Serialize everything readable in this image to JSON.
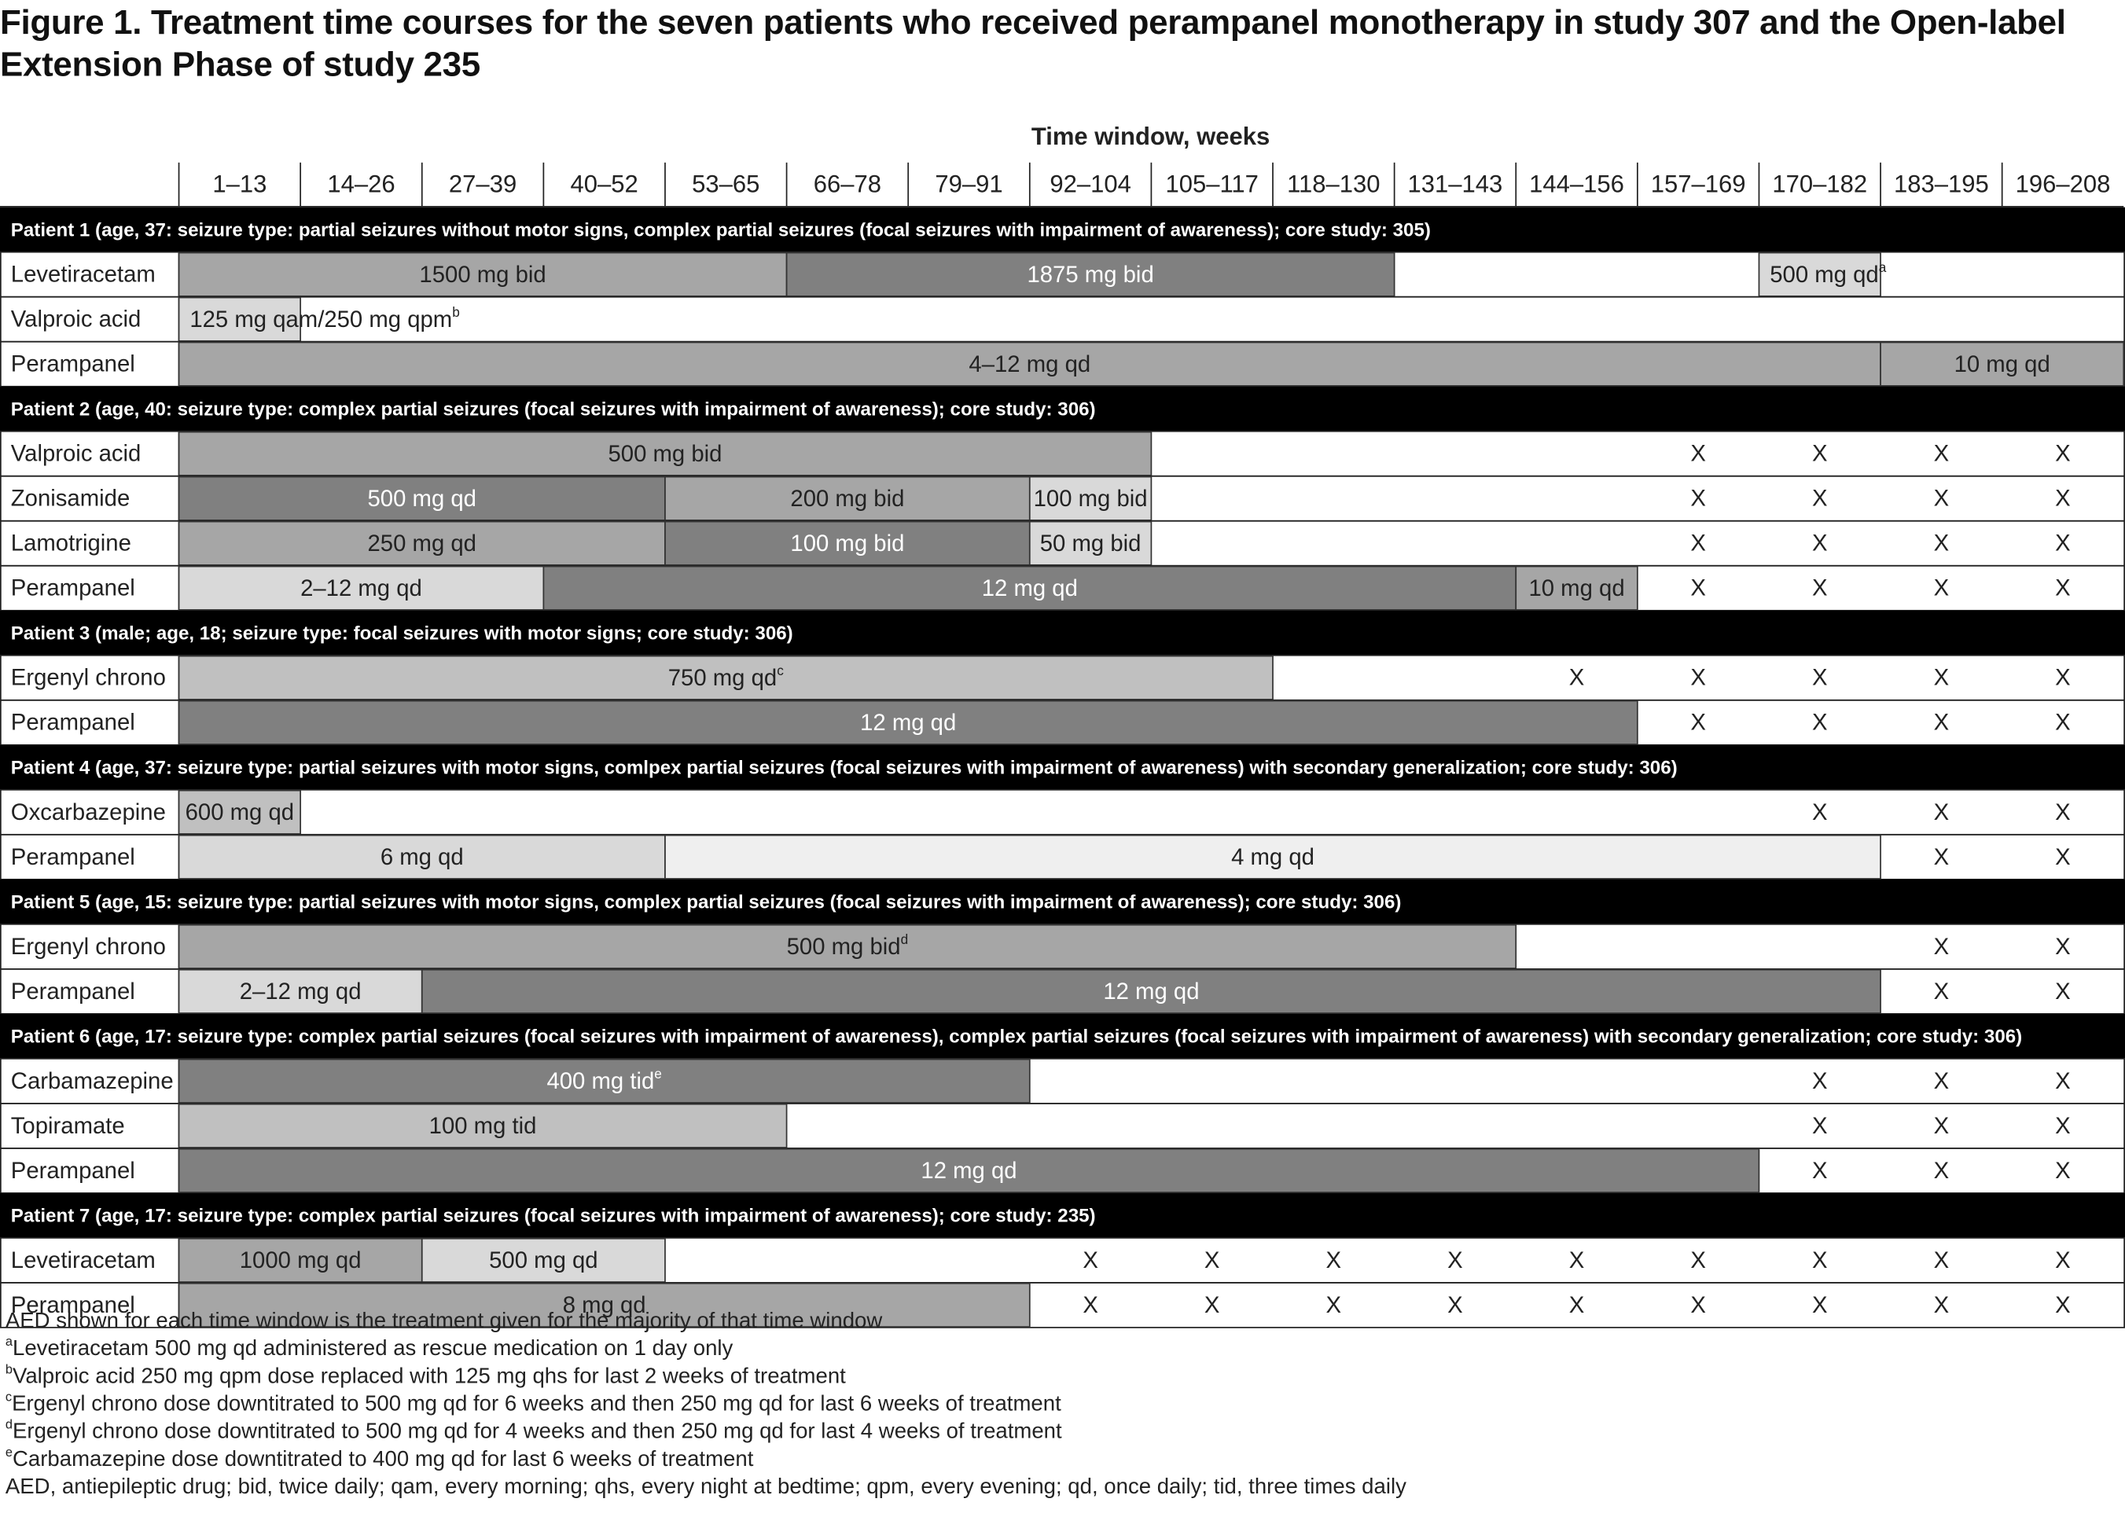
{
  "title": "Figure 1. Treatment time courses for the seven patients who received perampanel monotherapy in study 307 and the Open-label Extension Phase of study 235",
  "axis_title": "Time window, weeks",
  "columns": [
    "1–13",
    "14–26",
    "27–39",
    "40–52",
    "53–65",
    "66–78",
    "79–91",
    "92–104",
    "105–117",
    "118–130",
    "131–143",
    "144–156",
    "157–169",
    "170–182",
    "183–195",
    "196–208"
  ],
  "absent_mark": "X",
  "patients": [
    {
      "header": "Patient 1 (age, 37: seizure type: partial seizures without motor signs, complex partial seizures (focal seizures with impairment of awareness); core study: 305)",
      "rows": [
        {
          "drug": "Levetiracetam",
          "segments": [
            {
              "label": "1500 mg bid",
              "start": 0,
              "end": 5,
              "color": "#a6a6a6"
            },
            {
              "label": "1875 mg bid",
              "start": 5,
              "end": 10,
              "color": "#808080"
            },
            {
              "label": "500 mg qd",
              "note": "a",
              "start": 13,
              "end": 14,
              "color": "#d9d9d9"
            }
          ],
          "absent": []
        },
        {
          "drug": "Valproic acid",
          "segments": [
            {
              "label": "125 mg qam/250 mg qpm",
              "note": "b",
              "start": 0,
              "end": 1,
              "color": "#d9d9d9"
            }
          ],
          "absent": []
        },
        {
          "drug": "Perampanel",
          "segments": [
            {
              "label": "4–12 mg qd",
              "start": 0,
              "end": 14,
              "color": "#a6a6a6"
            },
            {
              "label": "10 mg qd",
              "start": 14,
              "end": 16,
              "color": "#a6a6a6"
            }
          ],
          "absent": []
        }
      ]
    },
    {
      "header": "Patient 2 (age, 40: seizure type: complex partial seizures (focal seizures with impairment of awareness); core study: 306)",
      "rows": [
        {
          "drug": "Valproic acid",
          "segments": [
            {
              "label": "500 mg bid",
              "start": 0,
              "end": 8,
              "color": "#a6a6a6"
            }
          ],
          "absent": [
            12,
            13,
            14,
            15
          ]
        },
        {
          "drug": "Zonisamide",
          "segments": [
            {
              "label": "500 mg qd",
              "start": 0,
              "end": 4,
              "color": "#808080"
            },
            {
              "label": "200 mg bid",
              "start": 4,
              "end": 7,
              "color": "#a6a6a6"
            },
            {
              "label": "100 mg bid",
              "start": 7,
              "end": 8,
              "color": "#d9d9d9"
            }
          ],
          "absent": [
            12,
            13,
            14,
            15
          ]
        },
        {
          "drug": "Lamotrigine",
          "segments": [
            {
              "label": "250 mg qd",
              "start": 0,
              "end": 4,
              "color": "#a6a6a6"
            },
            {
              "label": "100 mg bid",
              "start": 4,
              "end": 7,
              "color": "#808080"
            },
            {
              "label": "50 mg bid",
              "start": 7,
              "end": 8,
              "color": "#d9d9d9"
            }
          ],
          "absent": [
            12,
            13,
            14,
            15
          ]
        },
        {
          "drug": "Perampanel",
          "segments": [
            {
              "label": "2–12 mg qd",
              "start": 0,
              "end": 3,
              "color": "#d9d9d9"
            },
            {
              "label": "12 mg qd",
              "start": 3,
              "end": 11,
              "color": "#808080"
            },
            {
              "label": "10 mg qd",
              "start": 11,
              "end": 12,
              "color": "#a6a6a6"
            }
          ],
          "absent": [
            12,
            13,
            14,
            15
          ]
        }
      ]
    },
    {
      "header": "Patient 3 (male; age, 18; seizure type: focal seizures with motor signs; core study: 306)",
      "rows": [
        {
          "drug": "Ergenyl chrono",
          "segments": [
            {
              "label": "750 mg qd",
              "note": "c",
              "start": 0,
              "end": 9,
              "color": "#c0c0c0"
            }
          ],
          "absent": [
            11,
            12,
            13,
            14,
            15
          ]
        },
        {
          "drug": "Perampanel",
          "segments": [
            {
              "label": "12 mg qd",
              "start": 0,
              "end": 12,
              "color": "#808080"
            }
          ],
          "absent": [
            12,
            13,
            14,
            15
          ]
        }
      ]
    },
    {
      "header": "Patient 4 (age, 37: seizure type: partial seizures with motor signs, comlpex partial seizures (focal seizures with impairment of awareness) with secondary generalization; core study: 306)",
      "rows": [
        {
          "drug": "Oxcarbazepine",
          "segments": [
            {
              "label": "600 mg qd",
              "start": 0,
              "end": 1,
              "color": "#c0c0c0"
            }
          ],
          "absent": [
            13,
            14,
            15
          ]
        },
        {
          "drug": "Perampanel",
          "segments": [
            {
              "label": "6 mg qd",
              "start": 0,
              "end": 4,
              "color": "#d9d9d9"
            },
            {
              "label": "4 mg qd",
              "start": 4,
              "end": 14,
              "color": "#efefef"
            }
          ],
          "absent": [
            14,
            15
          ]
        }
      ]
    },
    {
      "header": "Patient 5 (age, 15: seizure type: partial seizures with motor signs, complex partial seizures (focal seizures with impairment of awareness); core study: 306)",
      "rows": [
        {
          "drug": "Ergenyl chrono",
          "segments": [
            {
              "label": "500 mg bid",
              "note": "d",
              "start": 0,
              "end": 11,
              "color": "#a6a6a6"
            }
          ],
          "absent": [
            14,
            15
          ]
        },
        {
          "drug": "Perampanel",
          "segments": [
            {
              "label": "2–12 mg qd",
              "start": 0,
              "end": 2,
              "color": "#d9d9d9"
            },
            {
              "label": "12 mg qd",
              "start": 2,
              "end": 14,
              "color": "#808080"
            }
          ],
          "absent": [
            14,
            15
          ]
        }
      ]
    },
    {
      "header": "Patient 6 (age, 17: seizure type: complex partial seizures (focal seizures with impairment of awareness), complex partial seizures (focal seizures with impairment of awareness) with secondary generalization; core study: 306)",
      "rows": [
        {
          "drug": "Carbamazepine",
          "segments": [
            {
              "label": "400 mg tid",
              "note": "e",
              "start": 0,
              "end": 7,
              "color": "#808080"
            }
          ],
          "absent": [
            13,
            14,
            15
          ]
        },
        {
          "drug": "Topiramate",
          "segments": [
            {
              "label": "100 mg tid",
              "start": 0,
              "end": 5,
              "color": "#c0c0c0"
            }
          ],
          "absent": [
            13,
            14,
            15
          ]
        },
        {
          "drug": "Perampanel",
          "segments": [
            {
              "label": "12 mg qd",
              "start": 0,
              "end": 13,
              "color": "#808080"
            }
          ],
          "absent": [
            13,
            14,
            15
          ]
        }
      ]
    },
    {
      "header": "Patient 7 (age, 17: seizure type: complex partial seizures (focal seizures with impairment of awareness); core study: 235)",
      "rows": [
        {
          "drug": "Levetiracetam",
          "segments": [
            {
              "label": "1000 mg qd",
              "start": 0,
              "end": 2,
              "color": "#a6a6a6"
            },
            {
              "label": "500 mg qd",
              "start": 2,
              "end": 4,
              "color": "#d9d9d9"
            }
          ],
          "absent": [
            7,
            8,
            9,
            10,
            11,
            12,
            13,
            14,
            15
          ]
        },
        {
          "drug": "Perampanel",
          "segments": [
            {
              "label": "8 mg qd",
              "start": 0,
              "end": 7,
              "color": "#a6a6a6"
            }
          ],
          "absent": [
            7,
            8,
            9,
            10,
            11,
            12,
            13,
            14,
            15
          ]
        }
      ]
    }
  ],
  "footnotes": [
    {
      "text": "AED shown for each time window is the treatment given for the majority of that time window"
    },
    {
      "mark": "a",
      "text": "Levetiracetam 500 mg qd administered as rescue medication on 1 day only"
    },
    {
      "mark": "b",
      "text": "Valproic acid 250 mg qpm dose replaced with 125 mg qhs for last 2 weeks of treatment"
    },
    {
      "mark": "c",
      "text": "Ergenyl chrono dose downtitrated to 500 mg qd for 6 weeks and then 250 mg qd for last 6 weeks of treatment"
    },
    {
      "mark": "d",
      "text": "Ergenyl chrono dose downtitrated to 500 mg qd for 4 weeks and then 250 mg qd for last 4 weeks of treatment"
    },
    {
      "mark": "e",
      "text": "Carbamazepine dose downtitrated to 400 mg qd for last 6 weeks of treatment"
    },
    {
      "text": "AED, antiepileptic drug; bid, twice daily; qam, every morning; qhs, every night at bedtime; qpm, every evening; qd, once daily; tid, three times daily"
    }
  ]
}
